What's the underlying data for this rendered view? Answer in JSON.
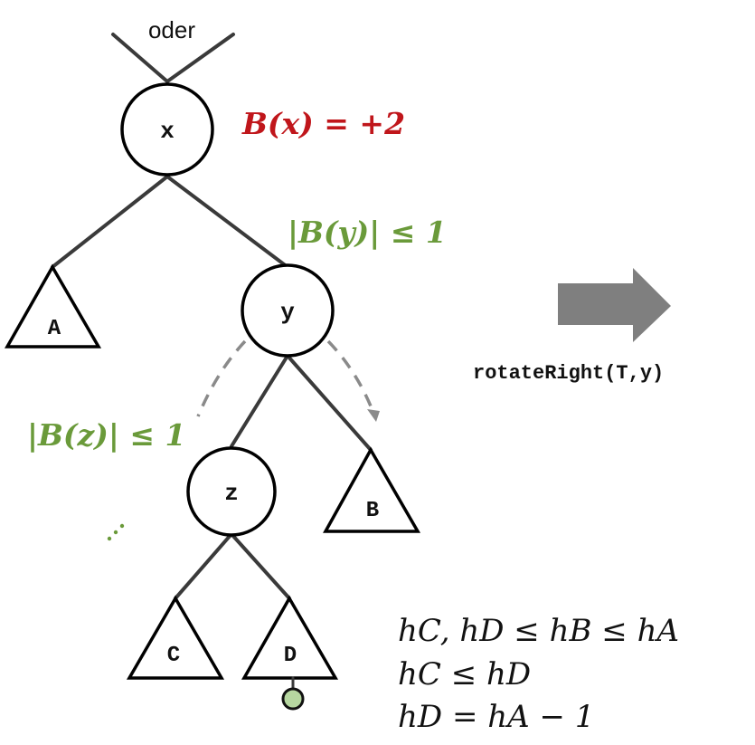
{
  "top_label": "oder",
  "nodes": {
    "x": "x",
    "y": "y",
    "z": "z"
  },
  "subtrees": {
    "a": "A",
    "b": "B",
    "c": "C",
    "d": "D"
  },
  "annotations": {
    "balance_x": "B(x) = +2",
    "balance_y": "|B(y)| ≤ 1",
    "balance_z": "|B(z)| ≤ 1"
  },
  "operation": "rotateRight(T,y)",
  "conditions": {
    "line1": "hC, hD ≤ hB ≤ hA",
    "line2": "hC ≤ hD",
    "line3": "hD = hA − 1"
  },
  "colors": {
    "red": "#c0161b",
    "green": "#6a9a3a",
    "gray": "#7f7f7f",
    "dot_fill": "#b6d7a0"
  }
}
